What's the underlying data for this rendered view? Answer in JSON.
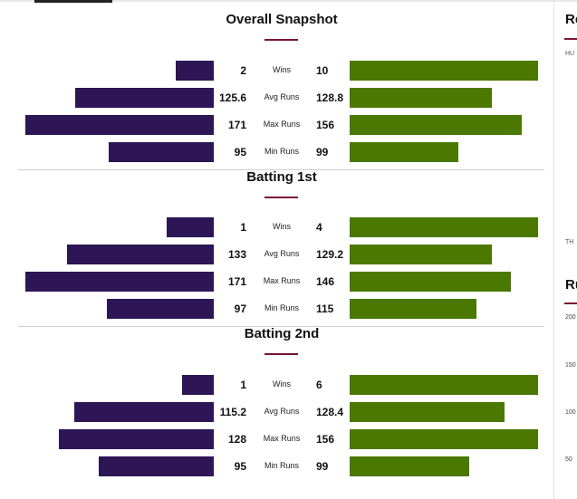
{
  "chart_data": [
    {
      "type": "bar",
      "title": "Overall Snapshot",
      "categories": [
        "Wins",
        "Avg Runs",
        "Max Runs",
        "Min Runs"
      ],
      "series": [
        {
          "values": [
            2,
            125.6,
            171,
            95
          ],
          "labels": [
            "2",
            "125.6",
            "171",
            "95"
          ],
          "color": "#2d1556"
        },
        {
          "values": [
            10,
            128.8,
            156,
            99
          ],
          "labels": [
            "10",
            "128.8",
            "156",
            "99"
          ],
          "color": "#4a7800"
        }
      ]
    },
    {
      "type": "bar",
      "title": "Batting 1st",
      "categories": [
        "Wins",
        "Avg Runs",
        "Max Runs",
        "Min Runs"
      ],
      "series": [
        {
          "values": [
            1,
            133,
            171,
            97
          ],
          "labels": [
            "1",
            "133",
            "171",
            "97"
          ],
          "color": "#2d1556"
        },
        {
          "values": [
            4,
            129.2,
            146,
            115
          ],
          "labels": [
            "4",
            "129.2",
            "146",
            "115"
          ],
          "color": "#4a7800"
        }
      ]
    },
    {
      "type": "bar",
      "title": "Batting 2nd",
      "categories": [
        "Wins",
        "Avg Runs",
        "Max Runs",
        "Min Runs"
      ],
      "series": [
        {
          "values": [
            1,
            115.2,
            128,
            95
          ],
          "labels": [
            "1",
            "115.2",
            "128",
            "95"
          ],
          "color": "#2d1556"
        },
        {
          "values": [
            6,
            128.4,
            156,
            99
          ],
          "labels": [
            "6",
            "128.4",
            "156",
            "99"
          ],
          "color": "#4a7800"
        }
      ]
    }
  ],
  "side": {
    "head1": "Re",
    "sub1": "HU",
    "sub2": "TH",
    "head2": "Ru",
    "ticks": [
      "200",
      "150",
      "100",
      "50"
    ]
  },
  "colors": {
    "accent": "#7a1532",
    "team_left": "#2d1556",
    "team_right": "#4a7800"
  }
}
